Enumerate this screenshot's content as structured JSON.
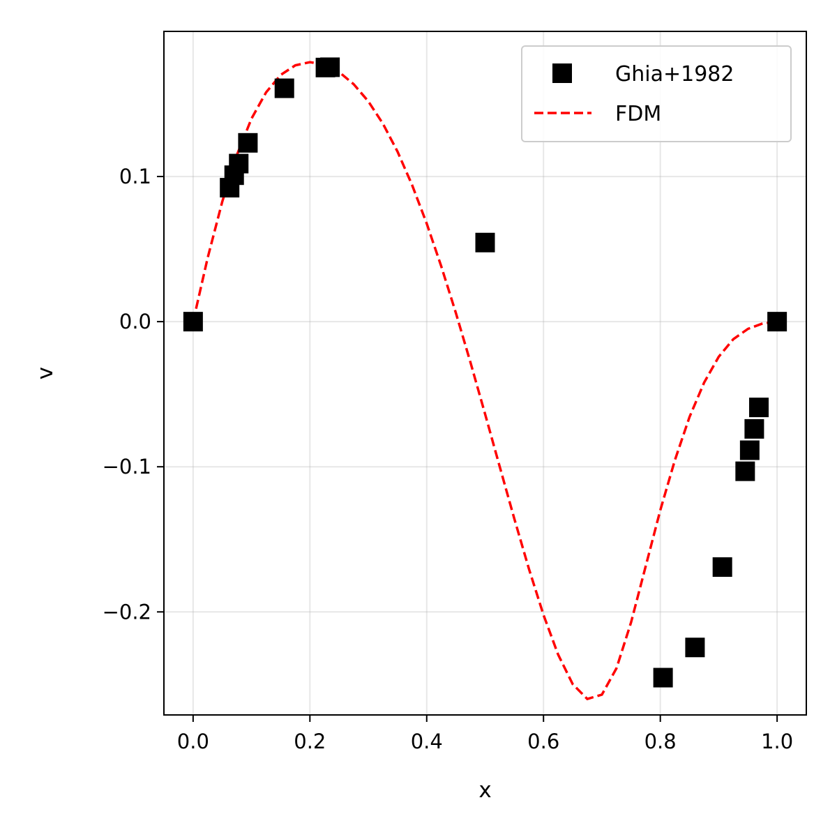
{
  "chart_data": {
    "type": "scatter",
    "title": "",
    "xlabel": "x",
    "ylabel": "v",
    "xlim": [
      -0.05,
      1.05
    ],
    "ylim": [
      -0.271,
      0.2
    ],
    "xticks": [
      0.0,
      0.2,
      0.4,
      0.6,
      0.8,
      1.0
    ],
    "xtick_labels": [
      "0.0",
      "0.2",
      "0.4",
      "0.6",
      "0.8",
      "1.0"
    ],
    "yticks": [
      -0.2,
      -0.1,
      0.0,
      0.1
    ],
    "ytick_labels": [
      "−0.2",
      "−0.1",
      "0.0",
      "0.1"
    ],
    "grid": true,
    "legend_position": "top-right",
    "series": [
      {
        "name": "Ghia+1982",
        "kind": "scatter",
        "marker": "square",
        "color": "#000000",
        "x": [
          0.0,
          0.0625,
          0.0703,
          0.0781,
          0.0938,
          0.1563,
          0.2266,
          0.2344,
          0.5,
          0.8047,
          0.8594,
          0.9063,
          0.9453,
          0.9531,
          0.9609,
          0.9688,
          1.0
        ],
        "y": [
          0.0,
          0.0923,
          0.1009,
          0.1089,
          0.1232,
          0.1608,
          0.1751,
          0.1753,
          0.0545,
          -0.2453,
          -0.2245,
          -0.1691,
          -0.1031,
          -0.0886,
          -0.0739,
          -0.0591,
          0.0
        ]
      },
      {
        "name": "FDM",
        "kind": "line",
        "linestyle": "dashed",
        "color": "#ff0000",
        "x": [
          0.0,
          0.025,
          0.05,
          0.075,
          0.1,
          0.125,
          0.15,
          0.175,
          0.2,
          0.225,
          0.25,
          0.275,
          0.3,
          0.325,
          0.35,
          0.375,
          0.4,
          0.425,
          0.45,
          0.475,
          0.5,
          0.525,
          0.55,
          0.575,
          0.6,
          0.625,
          0.65,
          0.675,
          0.7,
          0.725,
          0.75,
          0.775,
          0.8,
          0.825,
          0.85,
          0.875,
          0.9,
          0.925,
          0.95,
          0.975,
          1.0
        ],
        "y": [
          0.0,
          0.0441,
          0.0828,
          0.1149,
          0.1399,
          0.158,
          0.17,
          0.1766,
          0.1788,
          0.1771,
          0.172,
          0.1636,
          0.1518,
          0.1364,
          0.1172,
          0.0941,
          0.0676,
          0.038,
          0.0059,
          -0.0282,
          -0.0637,
          -0.0999,
          -0.1358,
          -0.1703,
          -0.2021,
          -0.2294,
          -0.2498,
          -0.26,
          -0.257,
          -0.2388,
          -0.2071,
          -0.1685,
          -0.1299,
          -0.0954,
          -0.0657,
          -0.042,
          -0.0242,
          -0.0121,
          -0.005,
          -0.0013,
          0.0
        ]
      }
    ]
  }
}
